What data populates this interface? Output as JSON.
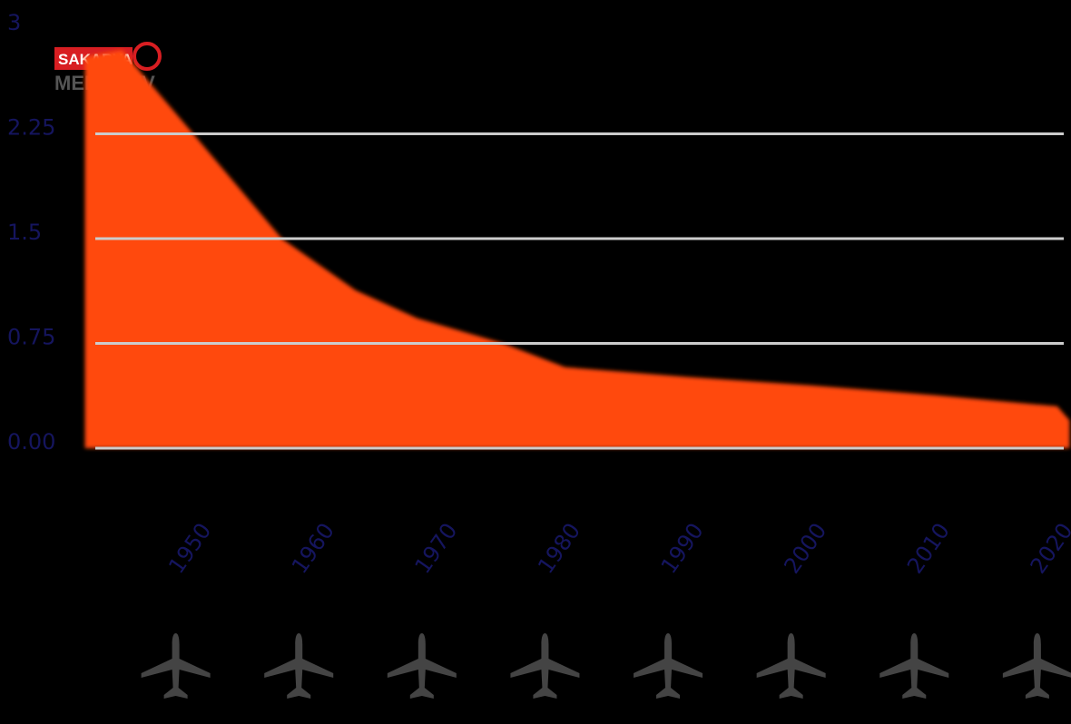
{
  "logo": {
    "line1": "SAKARYA",
    "line2": "MEDYA TV"
  },
  "chart_data": {
    "type": "area",
    "color": "#ff4a0a",
    "grid": true,
    "x": [
      1941,
      1944,
      1950,
      1957,
      1963,
      1968,
      1975,
      1980,
      1990,
      2000,
      2010,
      2020,
      2021
    ],
    "values": [
      2.8,
      2.85,
      2.23,
      1.5,
      1.13,
      0.93,
      0.75,
      0.58,
      0.51,
      0.45,
      0.38,
      0.3,
      0.2
    ],
    "xlim": [
      1940,
      2022
    ],
    "xticks": [
      1950,
      1960,
      1970,
      1980,
      1990,
      2000,
      2010,
      2020
    ],
    "ylim": [
      0,
      3
    ],
    "yticks": [
      {
        "value": 0,
        "label": "0.00"
      },
      0.75,
      1.5,
      2.25,
      3
    ]
  }
}
